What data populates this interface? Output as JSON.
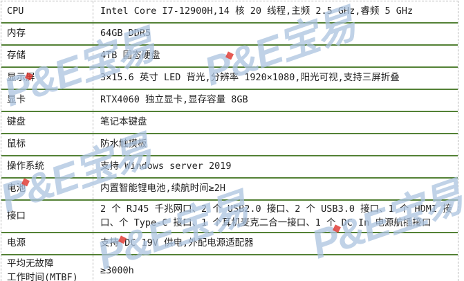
{
  "watermark": {
    "text": "P&E宝易",
    "color": "#abc3df",
    "dot_color": "#e03e37"
  },
  "colors": {
    "row_line": "#538135",
    "grid_line": "#b5b5b5",
    "text": "#1f1f1f",
    "background": "#ffffff"
  },
  "table": {
    "rows": [
      {
        "label": "CPU",
        "value": "Intel Core I7-12900H,14 核 20 线程,主频 2.5 GHz,睿频 5 GHz"
      },
      {
        "label": "内存",
        "value": "64GB DDR5"
      },
      {
        "label": "存储",
        "value": "4TB 固态硬盘"
      },
      {
        "label": "显示屏",
        "value": "3×15.6 英寸 LED 背光,分辨率 1920×1080,阳光可视,支持三屏折叠"
      },
      {
        "label": "显卡",
        "value": "RTX4060 独立显卡,显存容量 8GB"
      },
      {
        "label": "键盘",
        "value": "笔记本键盘"
      },
      {
        "label": "鼠标",
        "value": "防水触摸板"
      },
      {
        "label": "操作系统",
        "value": "支持 Windows server 2019"
      },
      {
        "label": "电池",
        "value": "内置智能锂电池,续航时间≥2H"
      },
      {
        "label": "接口",
        "value": "2 个 RJ45 千兆网口、2 个 USB2.0 接口、2 个 USB3.0 接口、1 个 HDMI 接口、个 Type-C 接口、1 个耳机麦克二合一接口、1 个 DC In 电源航插接口"
      },
      {
        "label": "电源",
        "value": "支持 DC 19V 供电,外配电源适配器"
      },
      {
        "label": "平均无故障\n工作时间(MTBF)",
        "value": "≥3000h"
      }
    ]
  }
}
